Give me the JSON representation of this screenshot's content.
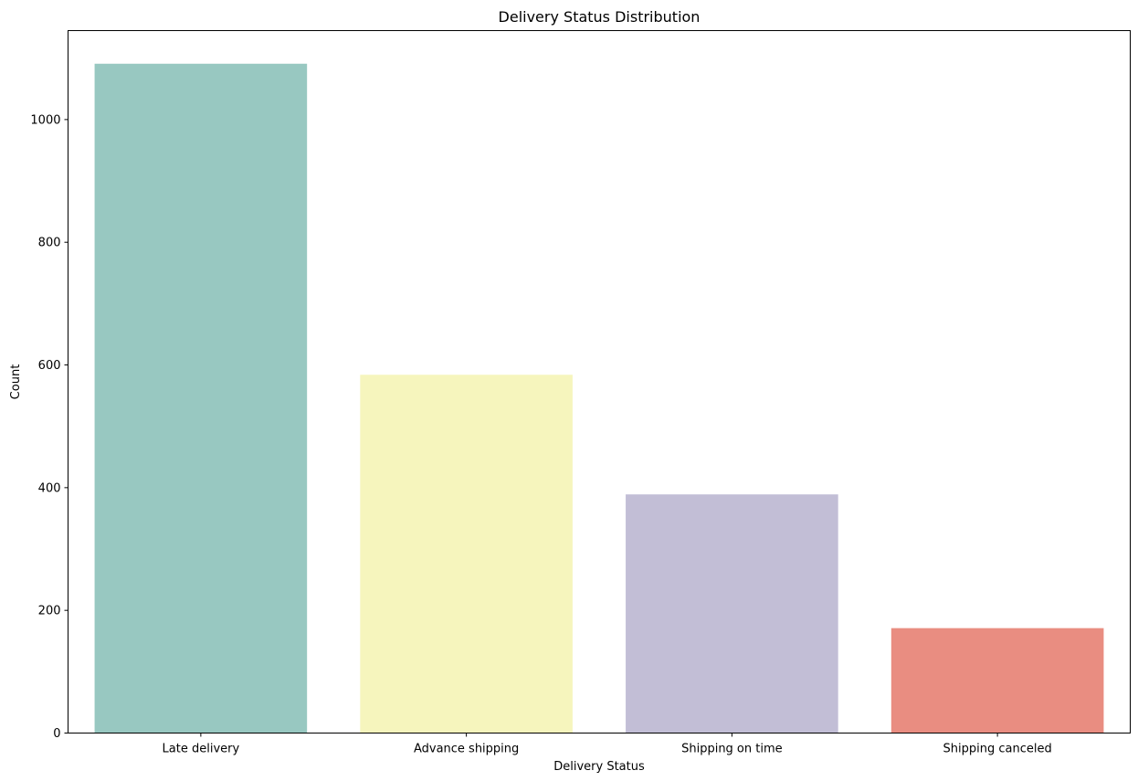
{
  "chart_data": {
    "type": "bar",
    "title": "Delivery Status Distribution",
    "xlabel": "Delivery Status",
    "ylabel": "Count",
    "categories": [
      "Late delivery",
      "Advance shipping",
      "Shipping on time",
      "Shipping canceled"
    ],
    "values": [
      1091,
      584,
      389,
      171
    ],
    "colors": [
      "#98c8c1",
      "#f6f5bd",
      "#c2bed6",
      "#e98d81"
    ],
    "ylim": [
      0,
      1145
    ],
    "yticks": [
      0,
      200,
      400,
      600,
      800,
      1000
    ],
    "grid": false,
    "legend": "none"
  }
}
